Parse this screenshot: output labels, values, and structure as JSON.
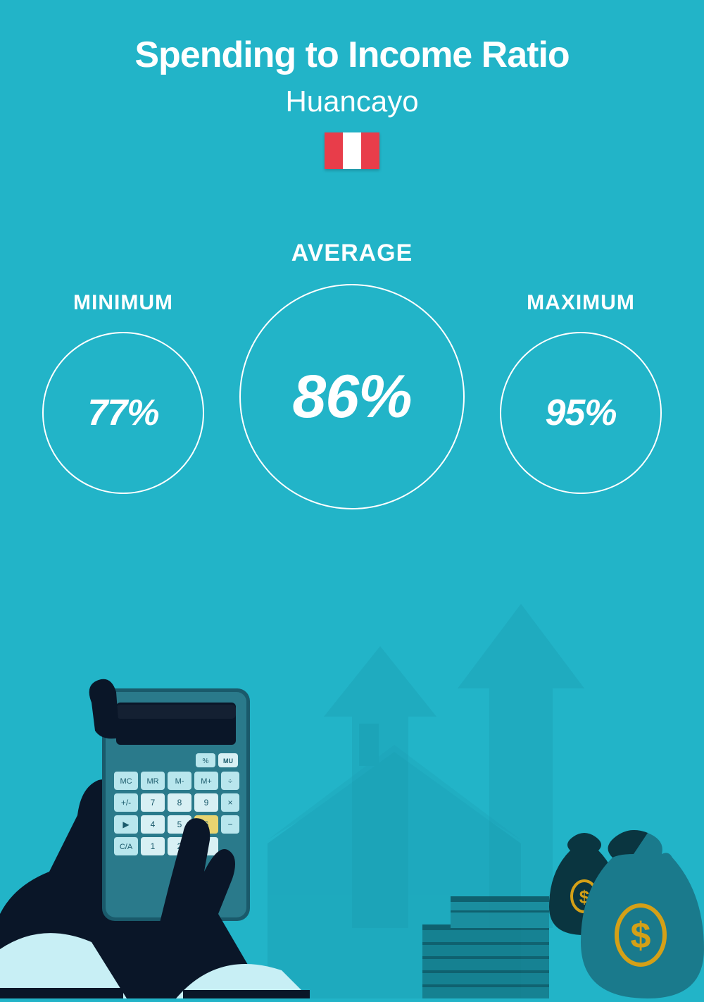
{
  "type": "infographic",
  "background_color": "#22b4c8",
  "text_color": "#ffffff",
  "header": {
    "title": "Spending to Income Ratio",
    "title_fontsize": 52,
    "title_weight": 800,
    "subtitle": "Huancayo",
    "subtitle_fontsize": 42,
    "subtitle_weight": 400,
    "flag": {
      "stripes": [
        "#e83d4a",
        "#ffffff",
        "#e83d4a"
      ],
      "width": 78,
      "height": 52
    }
  },
  "stats": {
    "minimum": {
      "label": "MINIMUM",
      "label_fontsize": 30,
      "value": "77%",
      "value_fontsize": 52,
      "circle_diameter": 230,
      "circle_border_width": 2,
      "circle_border_color": "#ffffff"
    },
    "average": {
      "label": "AVERAGE",
      "label_fontsize": 34,
      "value": "86%",
      "value_fontsize": 86,
      "circle_diameter": 320,
      "circle_border_width": 2,
      "circle_border_color": "#ffffff"
    },
    "maximum": {
      "label": "MAXIMUM",
      "label_fontsize": 30,
      "value": "95%",
      "value_fontsize": 52,
      "circle_diameter": 230,
      "circle_border_width": 2,
      "circle_border_color": "#ffffff"
    }
  },
  "illustration": {
    "arrow_color": "#1a9bb0",
    "house_color": "#1a9bb0",
    "hands_color": "#0a1628",
    "cuff_color": "#c8eff5",
    "calculator_body": "#1a5a6b",
    "calculator_screen": "#0a1628",
    "calculator_button": "#b8e6ed",
    "money_bag_dark": "#0a3540",
    "money_bag_light": "#1a7a8c",
    "dollar_color": "#d4a017",
    "stack_color": "#147a8a"
  }
}
